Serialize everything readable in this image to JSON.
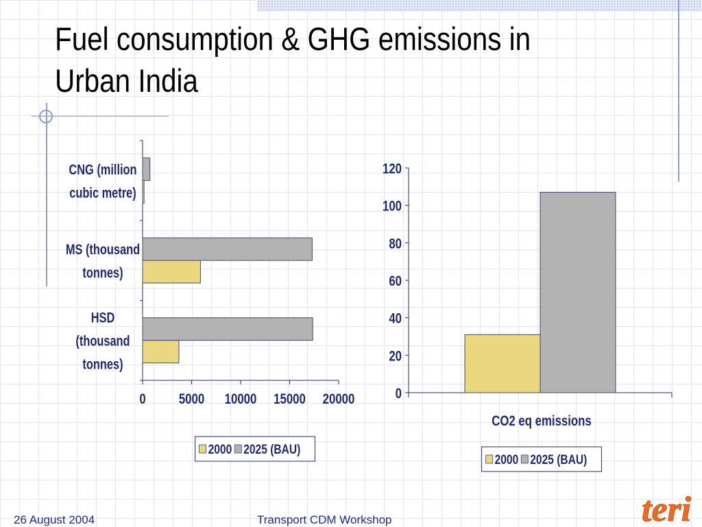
{
  "slide": {
    "title": "Fuel consumption & GHG emissions in Urban India",
    "footer_date": "26 August 2004",
    "footer_event": "Transport CDM Workshop",
    "logo_text": "teri"
  },
  "colors": {
    "series_2000": "#EBD77F",
    "series_2025": "#B3B3B3",
    "bar_border": "#404670",
    "axis": "#1f2a6e",
    "label_text": "#1f2a6e",
    "grid": "#dfe3f2",
    "logo": "#f26a1b"
  },
  "chart_data": [
    {
      "type": "bar",
      "orientation": "horizontal",
      "categories": [
        [
          "CNG (million",
          "cubic metre)"
        ],
        [
          "MS (thousand",
          "tonnes)"
        ],
        [
          "HSD",
          "(thousand",
          "tonnes)"
        ]
      ],
      "series": [
        {
          "name": "2000",
          "values": [
            150,
            5900,
            3700
          ]
        },
        {
          "name": "2025 (BAU)",
          "values": [
            750,
            17300,
            17350
          ]
        }
      ],
      "xlim": [
        0,
        20000
      ],
      "xticks": [
        0,
        5000,
        10000,
        15000,
        20000
      ],
      "legend": "bottom",
      "grid": false
    },
    {
      "type": "bar",
      "orientation": "vertical",
      "categories": [
        "CO2 eq emissions"
      ],
      "series": [
        {
          "name": "2000",
          "values": [
            31
          ]
        },
        {
          "name": "2025 (BAU)",
          "values": [
            107
          ]
        }
      ],
      "ylim": [
        0,
        120
      ],
      "yticks": [
        0,
        20,
        40,
        60,
        80,
        100,
        120
      ],
      "legend": "bottom",
      "grid": false
    }
  ]
}
